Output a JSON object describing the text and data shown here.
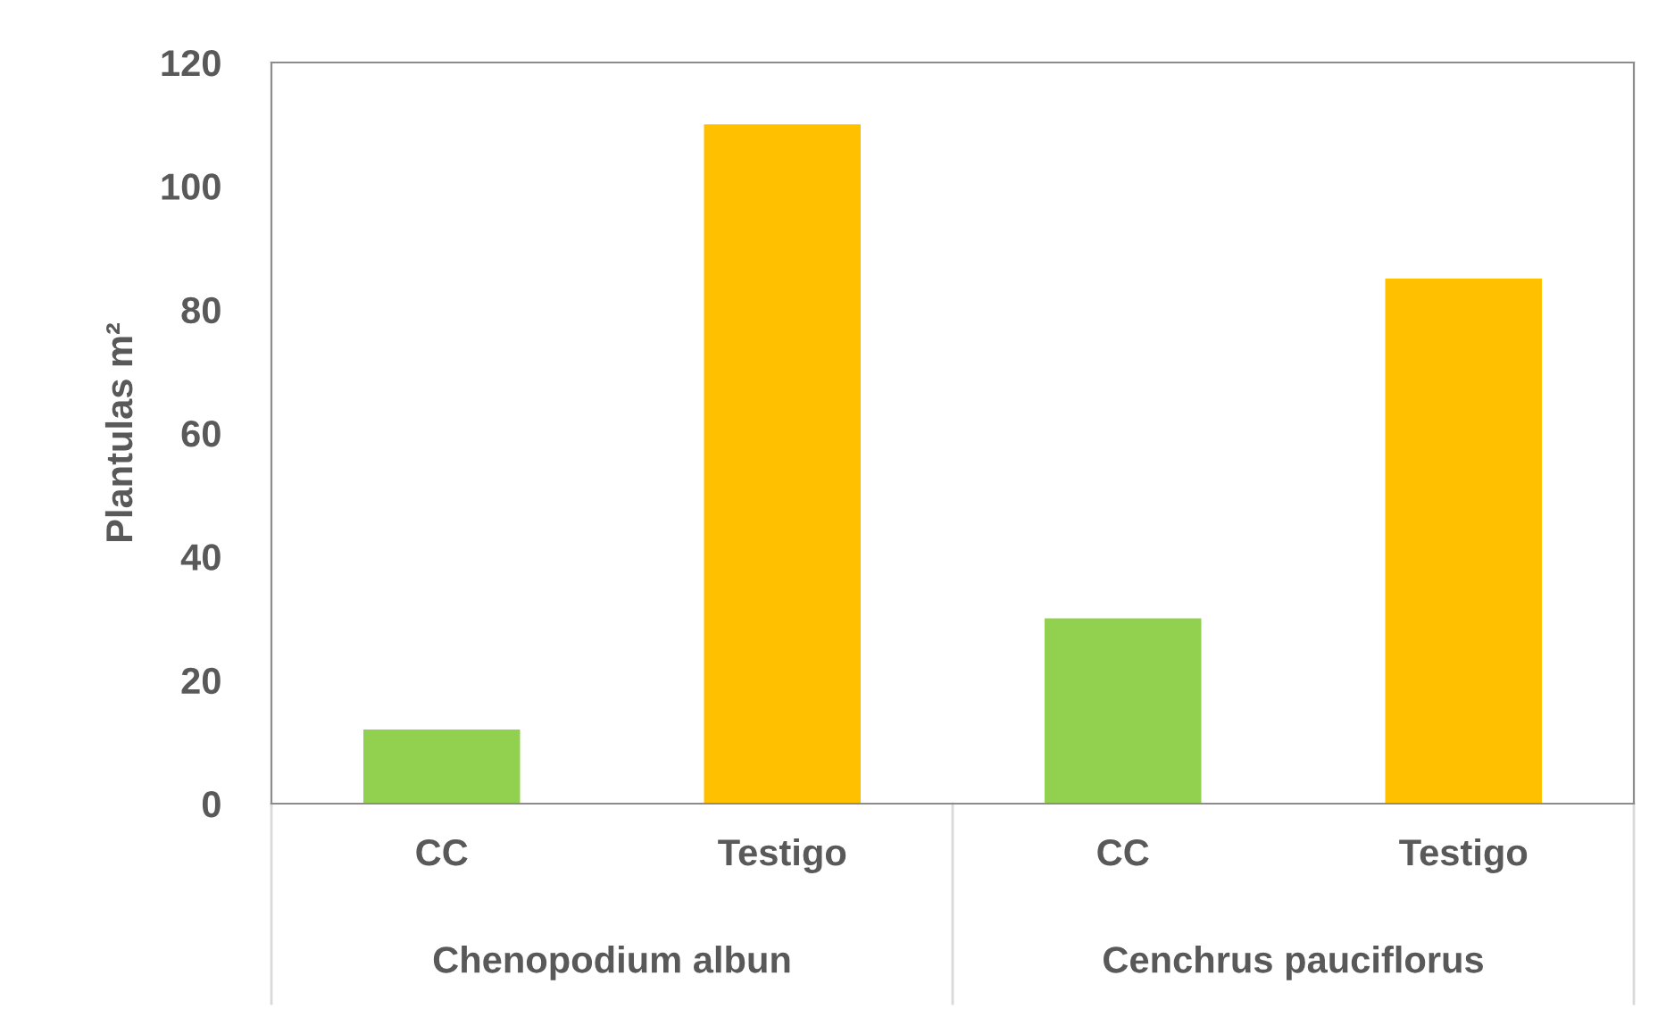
{
  "chart_data": {
    "type": "bar",
    "ylabel": "Plantulas m²",
    "categories": [
      "CC",
      "Testigo",
      "CC",
      "Testigo"
    ],
    "values": [
      12,
      110,
      30,
      85
    ],
    "colors": [
      "#92d050",
      "#ffc000",
      "#92d050",
      "#ffc000"
    ],
    "ylim": [
      0,
      120
    ],
    "yticks": [
      0,
      20,
      40,
      60,
      80,
      100,
      120
    ],
    "annotations": [
      "Chenopodium albun",
      "Cenchrus pauciflorus"
    ],
    "grid": false,
    "legend": false
  }
}
